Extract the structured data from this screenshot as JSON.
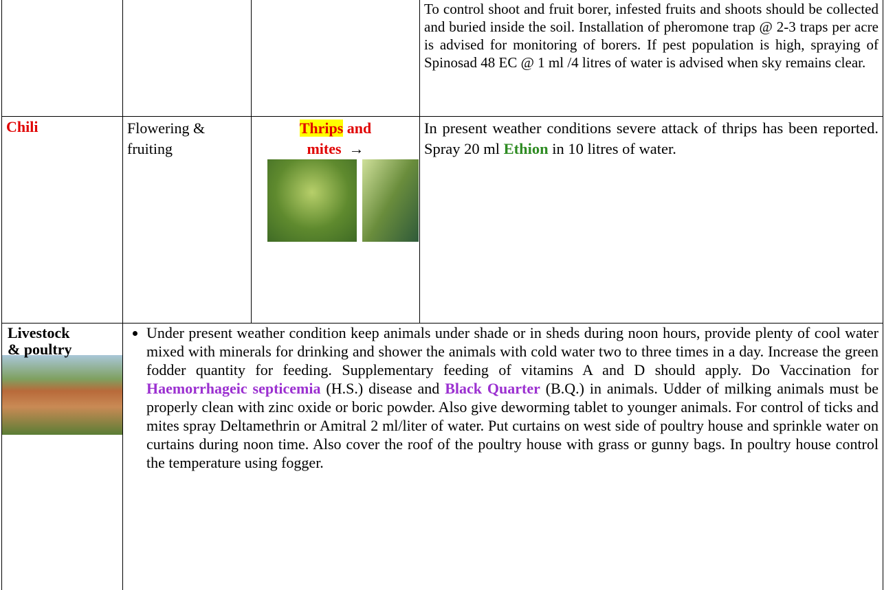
{
  "table": {
    "rows": [
      {
        "advisory": "To control shoot and fruit borer, infested fruits and shoots should be collected and buried inside the soil. Installation of pheromone trap @ 2-3 traps per acre is advised for monitoring of borers. If pest population is high, spraying of Spinosad 48 EC @ 1 ml /4 litres of water is advised when sky remains clear."
      },
      {
        "crop": "Chili",
        "stage": "Flowering & fruiting",
        "pest": [
          "Thrips",
          "and",
          "mites",
          "→"
        ],
        "advisory": [
          "In present weather conditions severe attack of thrips has been reported. Spray 20 ml",
          "Ethion",
          "in 10 litres of water."
        ]
      },
      {
        "category": "Livestock & poultry",
        "advisory": [
          "Under present weather condition keep animals under shade or in sheds during noon hours, provide plenty of cool water mixed with minerals for drinking and shower the animals with cold water two to three times in a day. Increase the green fodder quantity for feeding. Supplementary feeding of vitamins A and D should apply. Do Vaccination for",
          "Haemorrhageic septicemia",
          "(H.S.) disease and",
          "Black Quarter",
          "(B.Q.) in animals. Udder of milking animals must be properly clean with zinc oxide or boric powder. Also give deworming tablet to younger animals. For control of ticks and mites spray Deltamethrin or Amitral 2 ml/liter of water. Put curtains on west side of poultry house and sprinkle water on curtains during noon time. Also cover the roof of the poultry house with grass or gunny bags. In poultry house control the temperature using fogger."
        ]
      }
    ]
  }
}
